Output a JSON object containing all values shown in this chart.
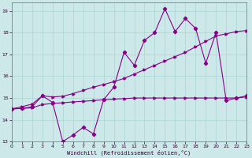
{
  "xlabel": "Windchill (Refroidissement éolien,°C)",
  "bg_color": "#cce8e8",
  "grid_color": "#aad4d4",
  "line_color": "#880088",
  "xlim": [
    0,
    23
  ],
  "ylim": [
    13,
    19.4
  ],
  "yticks": [
    13,
    14,
    15,
    16,
    17,
    18,
    19
  ],
  "xticks": [
    0,
    1,
    2,
    3,
    4,
    5,
    6,
    7,
    8,
    9,
    10,
    11,
    12,
    13,
    14,
    15,
    16,
    17,
    18,
    19,
    20,
    21,
    22,
    23
  ],
  "line_flat_x": [
    0,
    1,
    2,
    3,
    4,
    5,
    6,
    7,
    8,
    9,
    10,
    11,
    12,
    13,
    14,
    15,
    16,
    17,
    18,
    19,
    20,
    21,
    22,
    23
  ],
  "line_flat_y": [
    14.5,
    14.52,
    14.55,
    14.7,
    14.75,
    14.78,
    14.82,
    14.85,
    14.88,
    14.92,
    14.95,
    14.97,
    15.0,
    15.0,
    15.0,
    15.0,
    15.0,
    15.0,
    15.0,
    15.0,
    15.0,
    15.0,
    15.0,
    15.05
  ],
  "line_slope_x": [
    0,
    1,
    2,
    3,
    4,
    5,
    6,
    7,
    8,
    9,
    10,
    11,
    12,
    13,
    14,
    15,
    16,
    17,
    18,
    19,
    20,
    21,
    22,
    23
  ],
  "line_slope_y": [
    14.5,
    14.6,
    14.72,
    15.1,
    15.05,
    15.08,
    15.2,
    15.35,
    15.5,
    15.62,
    15.75,
    15.9,
    16.1,
    16.3,
    16.5,
    16.7,
    16.9,
    17.1,
    17.35,
    17.6,
    17.85,
    17.95,
    18.05,
    18.1
  ],
  "line_jagged_x": [
    0,
    1,
    2,
    3,
    4,
    5,
    6,
    7,
    8,
    9,
    10,
    11,
    12,
    13,
    14,
    15,
    16,
    17,
    18,
    19,
    20,
    21,
    22,
    23
  ],
  "line_jagged_y": [
    14.5,
    14.52,
    14.6,
    15.1,
    14.8,
    13.0,
    13.3,
    13.65,
    13.35,
    14.92,
    15.5,
    17.1,
    16.5,
    17.65,
    18.0,
    19.1,
    18.05,
    18.65,
    18.2,
    16.6,
    18.0,
    14.88,
    15.0,
    15.1
  ]
}
